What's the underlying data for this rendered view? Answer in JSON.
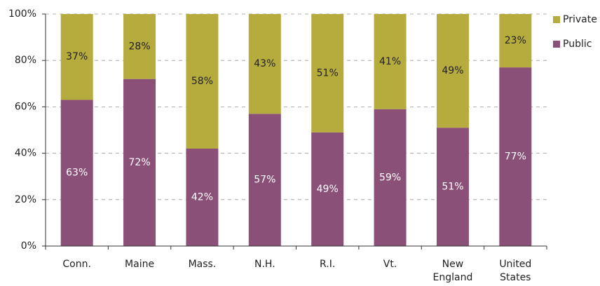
{
  "chart_data": {
    "type": "stacked_bar",
    "categories": [
      "Conn.",
      "Maine",
      "Mass.",
      "N.H.",
      "R.I.",
      "Vt.",
      "New England",
      "United States"
    ],
    "series": [
      {
        "name": "Public",
        "color": "#8b5078",
        "label_color": "#ffffff",
        "values": [
          63,
          72,
          42,
          57,
          49,
          59,
          51,
          77
        ],
        "value_labels": [
          "63%",
          "72%",
          "42%",
          "57%",
          "49%",
          "59%",
          "51%",
          "77%"
        ]
      },
      {
        "name": "Private",
        "color": "#b6ac3e",
        "label_color": "#222222",
        "values": [
          37,
          28,
          58,
          43,
          51,
          41,
          49,
          23
        ],
        "value_labels": [
          "37%",
          "28%",
          "58%",
          "43%",
          "51%",
          "41%",
          "49%",
          "23%"
        ]
      }
    ],
    "ylim": [
      0,
      100
    ],
    "yticks": [
      {
        "value": 0,
        "label": "0%"
      },
      {
        "value": 20,
        "label": "20%"
      },
      {
        "value": 40,
        "label": "40%"
      },
      {
        "value": 60,
        "label": "60%"
      },
      {
        "value": 80,
        "label": "80%"
      },
      {
        "value": 100,
        "label": "100%"
      }
    ],
    "grid": true,
    "legend": "right"
  }
}
